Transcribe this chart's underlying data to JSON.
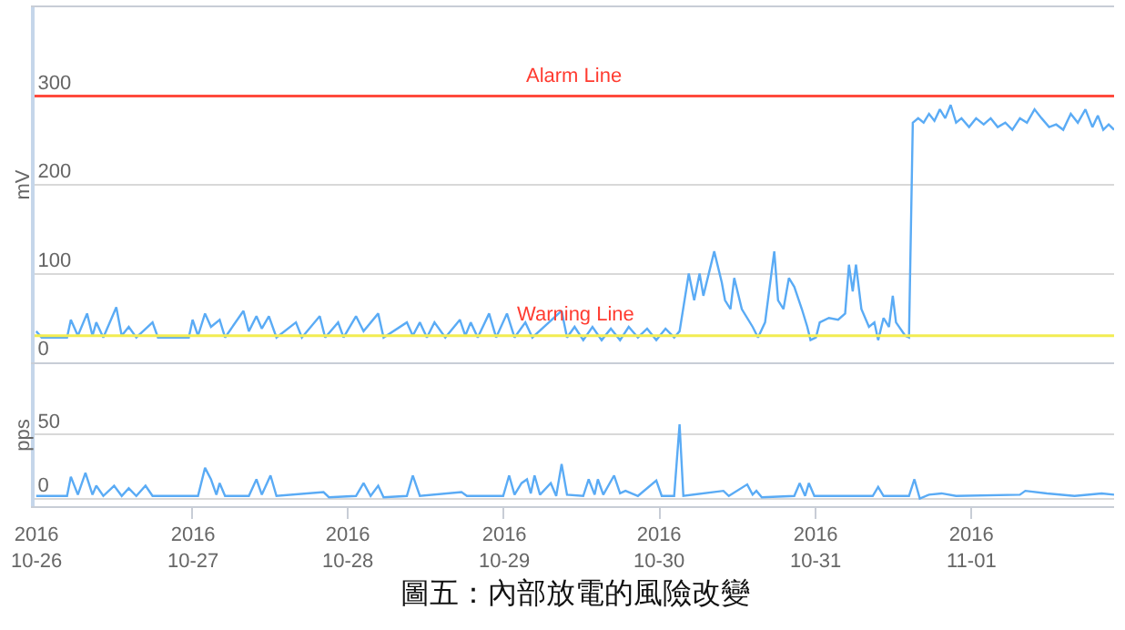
{
  "chart_data": [
    {
      "type": "line",
      "ylabel": "mV",
      "ylim": [
        0,
        400
      ],
      "yticks": [
        0,
        100,
        200,
        300
      ],
      "xlim": [
        "2016-10-25T23:45",
        "2016-11-01T22:00"
      ],
      "grid": "y",
      "tick_labels": "y",
      "marker": "none",
      "line_style": "solid",
      "ref_lines": [
        {
          "axis": "y",
          "value": 300,
          "label": "Alarm Line",
          "color": "#ff4a3d"
        },
        {
          "axis": "y",
          "value": 30,
          "label": "Warning Line",
          "color": "#f2ec52"
        }
      ],
      "series": [
        {
          "color": "#5aabf5",
          "x": [
            "2016-10-26T00:00",
            "2016-10-26T00:50",
            "2016-10-26T04:45",
            "2016-10-26T05:20",
            "2016-10-26T06:25",
            "2016-10-26T07:50",
            "2016-10-26T08:40",
            "2016-10-26T09:15",
            "2016-10-26T10:20",
            "2016-10-26T12:20",
            "2016-10-26T13:10",
            "2016-10-26T14:15",
            "2016-10-26T15:25",
            "2016-10-26T17:55",
            "2016-10-26T18:45",
            "2016-10-26T23:30",
            "2016-10-27T00:05",
            "2016-10-27T00:55",
            "2016-10-27T02:00",
            "2016-10-27T02:55",
            "2016-10-27T04:15",
            "2016-10-27T05:05",
            "2016-10-27T07:55",
            "2016-10-27T08:45",
            "2016-10-27T09:55",
            "2016-10-27T10:45",
            "2016-10-27T11:50",
            "2016-10-27T13:00",
            "2016-10-27T16:00",
            "2016-10-27T16:55",
            "2016-10-27T19:40",
            "2016-10-27T20:30",
            "2016-10-27T22:30",
            "2016-10-27T23:20",
            "2016-10-28T01:15",
            "2016-10-28T02:25",
            "2016-10-28T04:40",
            "2016-10-28T05:30",
            "2016-10-28T09:05",
            "2016-10-28T10:00",
            "2016-10-28T11:05",
            "2016-10-28T12:10",
            "2016-10-28T13:20",
            "2016-10-28T15:00",
            "2016-10-28T17:15",
            "2016-10-28T18:05",
            "2016-10-28T18:55",
            "2016-10-28T20:00",
            "2016-10-28T21:45",
            "2016-10-28T22:50",
            "2016-10-29T00:30",
            "2016-10-29T01:40",
            "2016-10-29T03:20",
            "2016-10-29T04:25",
            "2016-10-29T08:55",
            "2016-10-29T09:45",
            "2016-10-29T10:55",
            "2016-10-29T12:15",
            "2016-10-29T13:40",
            "2016-10-29T15:05",
            "2016-10-29T16:30",
            "2016-10-29T17:55",
            "2016-10-29T19:15",
            "2016-10-29T20:40",
            "2016-10-29T22:05",
            "2016-10-29T23:30",
            "2016-10-30T00:55",
            "2016-10-30T02:15",
            "2016-10-30T03:05",
            "2016-10-30T04:30",
            "2016-10-30T05:20",
            "2016-10-30T06:10",
            "2016-10-30T06:45",
            "2016-10-30T08:25",
            "2016-10-30T09:35",
            "2016-10-30T10:05",
            "2016-10-30T10:55",
            "2016-10-30T11:30",
            "2016-10-30T12:40",
            "2016-10-30T14:20",
            "2016-10-30T15:10",
            "2016-10-30T16:15",
            "2016-10-30T17:40",
            "2016-10-30T18:15",
            "2016-10-30T19:05",
            "2016-10-30T19:55",
            "2016-10-30T20:45",
            "2016-10-30T21:55",
            "2016-10-30T22:45",
            "2016-10-30T23:15",
            "2016-10-31T00:05",
            "2016-10-31T00:40",
            "2016-10-31T02:05",
            "2016-10-31T03:30",
            "2016-10-31T04:35",
            "2016-10-31T05:10",
            "2016-10-31T05:45",
            "2016-10-31T06:15",
            "2016-10-31T07:05",
            "2016-10-31T08:15",
            "2016-10-31T09:05",
            "2016-10-31T09:40",
            "2016-10-31T10:30",
            "2016-10-31T11:20",
            "2016-10-31T11:55",
            "2016-10-31T12:25",
            "2016-10-31T13:50",
            "2016-10-31T14:25",
            "2016-10-31T15:00",
            "2016-10-31T15:50",
            "2016-10-31T16:40",
            "2016-10-31T17:30",
            "2016-10-31T18:20",
            "2016-10-31T19:10",
            "2016-10-31T20:00",
            "2016-10-31T20:50",
            "2016-10-31T21:40",
            "2016-10-31T22:30",
            "2016-10-31T23:40",
            "2016-11-01T00:45",
            "2016-11-01T01:55",
            "2016-11-01T03:00",
            "2016-11-01T04:05",
            "2016-11-01T05:15",
            "2016-11-01T06:20",
            "2016-11-01T07:30",
            "2016-11-01T08:35",
            "2016-11-01T09:45",
            "2016-11-01T10:50",
            "2016-11-01T12:00",
            "2016-11-01T13:05",
            "2016-11-01T14:10",
            "2016-11-01T15:20",
            "2016-11-01T16:25",
            "2016-11-01T17:35",
            "2016-11-01T18:40",
            "2016-11-01T19:30",
            "2016-11-01T20:20",
            "2016-11-01T21:10",
            "2016-11-01T22:00"
          ],
          "values": [
            35,
            28,
            28,
            48,
            30,
            55,
            30,
            45,
            28,
            62,
            30,
            40,
            28,
            45,
            28,
            28,
            48,
            30,
            55,
            40,
            48,
            28,
            58,
            35,
            52,
            38,
            52,
            28,
            45,
            28,
            52,
            28,
            45,
            28,
            52,
            35,
            55,
            28,
            45,
            30,
            45,
            28,
            45,
            28,
            48,
            30,
            45,
            28,
            55,
            28,
            55,
            28,
            45,
            28,
            58,
            28,
            40,
            25,
            40,
            25,
            38,
            25,
            40,
            28,
            38,
            25,
            38,
            28,
            35,
            100,
            70,
            100,
            75,
            125,
            90,
            70,
            60,
            95,
            60,
            40,
            28,
            45,
            125,
            70,
            60,
            95,
            85,
            60,
            40,
            25,
            28,
            45,
            50,
            48,
            55,
            110,
            80,
            110,
            60,
            40,
            45,
            25,
            50,
            40,
            75,
            45,
            30,
            28,
            270,
            275,
            270,
            280,
            272,
            285,
            275,
            290,
            270,
            275,
            265,
            275,
            268,
            275,
            265,
            270,
            262,
            275,
            270,
            285,
            275,
            265,
            268,
            262,
            280,
            270,
            285,
            265,
            278,
            262,
            268,
            262
          ]
        }
      ]
    },
    {
      "type": "line",
      "ylabel": "pps",
      "ylim": [
        -6,
        105
      ],
      "yticks": [
        0,
        50
      ],
      "xlim": [
        "2016-10-25T23:45",
        "2016-11-01T22:00"
      ],
      "grid": "y",
      "marker": "none",
      "line_style": "solid",
      "xticks": [
        {
          "value": "2016-10-26",
          "label": "2016\n10-26"
        },
        {
          "value": "2016-10-27",
          "label": "2016\n10-27"
        },
        {
          "value": "2016-10-28",
          "label": "2016\n10-28"
        },
        {
          "value": "2016-10-29",
          "label": "2016\n10-29"
        },
        {
          "value": "2016-10-30",
          "label": "2016\n10-30"
        },
        {
          "value": "2016-10-31",
          "label": "2016\n10-31"
        },
        {
          "value": "2016-11-01",
          "label": "2016\n11-01"
        }
      ],
      "annotations": [
        "圖五：內部放電的風險改變"
      ],
      "series": [
        {
          "color": "#5aabf5",
          "x": [
            "2016-10-26T00:00",
            "2016-10-26T04:45",
            "2016-10-26T05:20",
            "2016-10-26T06:25",
            "2016-10-26T07:35",
            "2016-10-26T08:40",
            "2016-10-26T09:15",
            "2016-10-26T10:20",
            "2016-10-26T12:00",
            "2016-10-26T13:10",
            "2016-10-26T14:15",
            "2016-10-26T15:25",
            "2016-10-26T16:50",
            "2016-10-26T17:55",
            "2016-10-27T00:55",
            "2016-10-27T02:00",
            "2016-10-27T02:55",
            "2016-10-27T03:45",
            "2016-10-27T04:15",
            "2016-10-27T05:05",
            "2016-10-27T08:45",
            "2016-10-27T09:55",
            "2016-10-27T10:45",
            "2016-10-27T12:05",
            "2016-10-27T13:00",
            "2016-10-27T20:15",
            "2016-10-27T21:05",
            "2016-10-28T01:15",
            "2016-10-28T02:25",
            "2016-10-28T03:30",
            "2016-10-28T04:40",
            "2016-10-28T05:30",
            "2016-10-28T09:05",
            "2016-10-28T10:00",
            "2016-10-28T11:05",
            "2016-10-28T17:30",
            "2016-10-28T18:20",
            "2016-10-28T23:55",
            "2016-10-29T00:50",
            "2016-10-29T01:40",
            "2016-10-29T02:45",
            "2016-10-29T03:35",
            "2016-10-29T04:10",
            "2016-10-29T04:45",
            "2016-10-29T05:35",
            "2016-10-29T07:15",
            "2016-10-29T08:05",
            "2016-10-29T08:55",
            "2016-10-29T09:45",
            "2016-10-29T12:15",
            "2016-10-29T13:05",
            "2016-10-29T14:00",
            "2016-10-29T14:30",
            "2016-10-29T15:20",
            "2016-10-29T17:00",
            "2016-10-29T17:55",
            "2016-10-29T18:45",
            "2016-10-29T20:40",
            "2016-10-29T23:30",
            "2016-10-30T00:20",
            "2016-10-30T02:15",
            "2016-10-30T03:05",
            "2016-10-30T03:40",
            "2016-10-30T09:50",
            "2016-10-30T10:40",
            "2016-10-30T13:30",
            "2016-10-30T14:20",
            "2016-10-30T14:55",
            "2016-10-30T15:45",
            "2016-10-30T20:45",
            "2016-10-30T21:35",
            "2016-10-30T22:25",
            "2016-10-30T23:00",
            "2016-10-30T23:50",
            "2016-10-31T08:50",
            "2016-10-31T09:40",
            "2016-10-31T10:30",
            "2016-10-31T14:25",
            "2016-10-31T15:15",
            "2016-10-31T16:05",
            "2016-10-31T17:30",
            "2016-10-31T19:25",
            "2016-10-31T21:40",
            "2016-11-01T07:30",
            "2016-11-01T08:20",
            "2016-11-01T11:40",
            "2016-11-01T15:55",
            "2016-11-01T20:05",
            "2016-11-01T22:00"
          ],
          "values": [
            2,
            2,
            17,
            3,
            20,
            3,
            10,
            2,
            10,
            2,
            8,
            2,
            10,
            2,
            2,
            24,
            15,
            3,
            12,
            2,
            2,
            15,
            3,
            18,
            2,
            5,
            1,
            2,
            12,
            2,
            10,
            1,
            2,
            18,
            2,
            5,
            2,
            2,
            18,
            3,
            12,
            15,
            4,
            18,
            3,
            12,
            2,
            27,
            3,
            2,
            15,
            3,
            15,
            3,
            18,
            4,
            6,
            2,
            14,
            2,
            2,
            58,
            2,
            6,
            2,
            11,
            3,
            6,
            1,
            2,
            12,
            2,
            12,
            2,
            2,
            9,
            2,
            2,
            15,
            0,
            3,
            4,
            2,
            3,
            6,
            4,
            2,
            4,
            3
          ]
        }
      ]
    }
  ]
}
